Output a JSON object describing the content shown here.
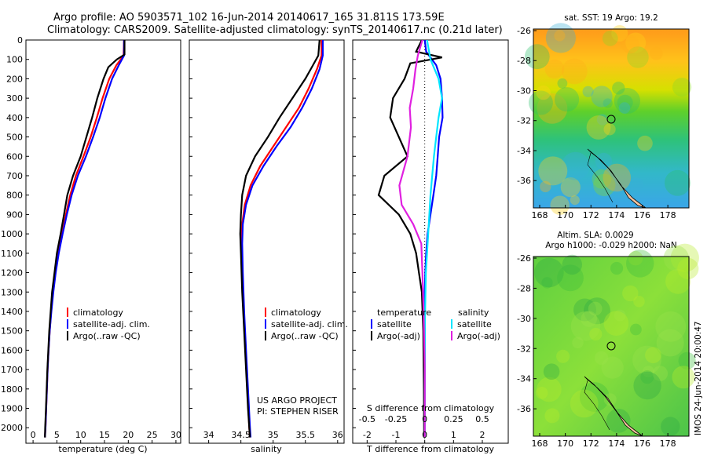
{
  "title": {
    "line1": "Argo profile: AO 5903571_102 16-Jun-2014 20140617_165 31.811S 173.59E",
    "line2": "Climatology: CARS2009. Satellite-adjusted climatology: synTS_20140617.nc (0.21d later)"
  },
  "depth_ticks": [
    0,
    100,
    200,
    300,
    400,
    500,
    600,
    700,
    800,
    900,
    1000,
    1100,
    1200,
    1300,
    1400,
    1500,
    1600,
    1700,
    1800,
    1900,
    2000
  ],
  "temperature_panel": {
    "xlabel": "temperature (deg C)",
    "xticks": [
      "0",
      "5",
      "10",
      "15",
      "20",
      "25",
      "30"
    ],
    "legend": [
      "climatology",
      "satellite-adj. clim.",
      "Argo(..raw -QC)"
    ]
  },
  "salinity_panel": {
    "xlabel": "salinity",
    "xticks": [
      "34",
      "34.5",
      "35",
      "35.5",
      "36"
    ],
    "legend": [
      "climatology",
      "satellite-adj. clim.",
      "Argo(..raw -QC)"
    ],
    "credit1": "US ARGO PROJECT",
    "credit2": "PI: STEPHEN RISER"
  },
  "difference_panel": {
    "top_label": "S difference from climatology",
    "xlabel": "T difference from climatology",
    "top_ticks": [
      "-0.5",
      "-0.25",
      "0",
      "0.25",
      "0.5"
    ],
    "bottom_ticks": [
      "-2",
      "-1",
      "0",
      "1",
      "2"
    ],
    "legend_temp_title": "temperature",
    "legend_temp": [
      "satellite",
      "Argo(-adj)"
    ],
    "legend_sal_title": "salinity",
    "legend_sal": [
      "satellite",
      "Argo(-adj)"
    ]
  },
  "sst_map": {
    "title": "sat. SST: 19 Argo: 19.2",
    "yticks": [
      "-26",
      "-28",
      "-30",
      "-32",
      "-34",
      "-36"
    ],
    "xticks": [
      "168",
      "170",
      "172",
      "174",
      "176",
      "178"
    ]
  },
  "sla_map": {
    "title1": "Altim. SLA: 0.0029",
    "title2": "Argo h1000: -0.029 h2000: NaN",
    "yticks": [
      "-26",
      "-28",
      "-30",
      "-32",
      "-34",
      "-36"
    ],
    "xticks": [
      "168",
      "170",
      "172",
      "174",
      "176",
      "178"
    ]
  },
  "side_stamp": "IMOS 24-Jun-2014 20:00:47",
  "colors": {
    "climatology": "#ff0000",
    "satellite": "#0000ff",
    "argo": "#000000",
    "sal_satellite": "#00e5ff",
    "sal_argo": "#e020e0"
  },
  "chart_data": [
    {
      "type": "line",
      "ylabel": "",
      "ylim": [
        2080,
        0
      ],
      "xlim": [
        -1.5,
        31
      ],
      "xlabel": "temperature (deg C)",
      "series": [
        {
          "name": "climatology",
          "points": [
            [
              19.1,
              0
            ],
            [
              19.0,
              80
            ],
            [
              17.5,
              130
            ],
            [
              16,
              200
            ],
            [
              14.6,
              300
            ],
            [
              13.4,
              400
            ],
            [
              12.1,
              500
            ],
            [
              10.6,
              600
            ],
            [
              9.0,
              700
            ],
            [
              7.8,
              800
            ],
            [
              6.9,
              900
            ],
            [
              6.1,
              1000
            ],
            [
              5.3,
              1100
            ],
            [
              4.7,
              1200
            ],
            [
              4.2,
              1300
            ],
            [
              3.8,
              1400
            ],
            [
              3.5,
              1500
            ],
            [
              3.25,
              1600
            ],
            [
              3.05,
              1700
            ],
            [
              2.9,
              1800
            ],
            [
              2.75,
              1900
            ],
            [
              2.6,
              2000
            ],
            [
              2.5,
              2050
            ]
          ]
        },
        {
          "name": "satellite-adj. clim.",
          "points": [
            [
              19.1,
              0
            ],
            [
              19.1,
              80
            ],
            [
              18.0,
              130
            ],
            [
              16.6,
              200
            ],
            [
              15.2,
              300
            ],
            [
              14.0,
              400
            ],
            [
              12.6,
              500
            ],
            [
              11.1,
              600
            ],
            [
              9.4,
              700
            ],
            [
              8.1,
              800
            ],
            [
              7.1,
              900
            ],
            [
              6.2,
              1000
            ],
            [
              5.4,
              1100
            ],
            [
              4.75,
              1200
            ],
            [
              4.25,
              1300
            ],
            [
              3.85,
              1400
            ],
            [
              3.5,
              1500
            ],
            [
              3.25,
              1600
            ],
            [
              3.05,
              1700
            ],
            [
              2.9,
              1800
            ],
            [
              2.75,
              1900
            ],
            [
              2.6,
              2000
            ],
            [
              2.5,
              2050
            ]
          ]
        },
        {
          "name": "Argo(..raw -QC)",
          "points": [
            [
              19.2,
              0
            ],
            [
              19.2,
              75
            ],
            [
              17.6,
              100
            ],
            [
              15.8,
              140
            ],
            [
              14.8,
              200
            ],
            [
              13.5,
              300
            ],
            [
              12.4,
              400
            ],
            [
              11.2,
              500
            ],
            [
              10.0,
              600
            ],
            [
              8.4,
              700
            ],
            [
              7.2,
              800
            ],
            [
              6.5,
              900
            ],
            [
              5.8,
              1000
            ],
            [
              5.0,
              1100
            ],
            [
              4.5,
              1200
            ],
            [
              4.0,
              1300
            ],
            [
              3.7,
              1400
            ],
            [
              3.4,
              1500
            ],
            [
              3.2,
              1600
            ],
            [
              3.0,
              1700
            ],
            [
              2.85,
              1800
            ],
            [
              2.7,
              1900
            ],
            [
              2.55,
              2000
            ],
            [
              2.5,
              2050
            ]
          ]
        }
      ]
    },
    {
      "type": "line",
      "ylim": [
        2080,
        0
      ],
      "xlim": [
        33.7,
        36.1
      ],
      "xlabel": "salinity",
      "series": [
        {
          "name": "climatology",
          "points": [
            [
              35.75,
              0
            ],
            [
              35.75,
              80
            ],
            [
              35.68,
              150
            ],
            [
              35.55,
              250
            ],
            [
              35.4,
              350
            ],
            [
              35.2,
              450
            ],
            [
              35.0,
              550
            ],
            [
              34.8,
              650
            ],
            [
              34.65,
              750
            ],
            [
              34.56,
              850
            ],
            [
              34.52,
              950
            ],
            [
              34.51,
              1050
            ],
            [
              34.52,
              1200
            ],
            [
              34.54,
              1400
            ],
            [
              34.57,
              1600
            ],
            [
              34.6,
              1800
            ],
            [
              34.63,
              2000
            ],
            [
              34.64,
              2050
            ]
          ]
        },
        {
          "name": "satellite-adj. clim.",
          "points": [
            [
              35.77,
              0
            ],
            [
              35.77,
              80
            ],
            [
              35.72,
              150
            ],
            [
              35.6,
              250
            ],
            [
              35.45,
              350
            ],
            [
              35.27,
              450
            ],
            [
              35.05,
              550
            ],
            [
              34.85,
              650
            ],
            [
              34.68,
              750
            ],
            [
              34.58,
              850
            ],
            [
              34.53,
              950
            ],
            [
              34.52,
              1050
            ],
            [
              34.53,
              1200
            ],
            [
              34.55,
              1400
            ],
            [
              34.58,
              1600
            ],
            [
              34.61,
              1800
            ],
            [
              34.64,
              2000
            ],
            [
              34.65,
              2050
            ]
          ]
        },
        {
          "name": "Argo(..raw -QC)",
          "points": [
            [
              35.72,
              0
            ],
            [
              35.7,
              80
            ],
            [
              35.6,
              140
            ],
            [
              35.5,
              200
            ],
            [
              35.3,
              300
            ],
            [
              35.1,
              400
            ],
            [
              34.92,
              500
            ],
            [
              34.72,
              600
            ],
            [
              34.58,
              700
            ],
            [
              34.52,
              800
            ],
            [
              34.5,
              900
            ],
            [
              34.49,
              1000
            ],
            [
              34.5,
              1100
            ],
            [
              34.52,
              1300
            ],
            [
              34.55,
              1500
            ],
            [
              34.58,
              1700
            ],
            [
              34.61,
              1900
            ],
            [
              34.63,
              2000
            ],
            [
              34.64,
              2050
            ]
          ]
        }
      ]
    },
    {
      "type": "line",
      "ylim": [
        2080,
        0
      ],
      "xlim": [
        -2.5,
        2.9
      ],
      "xlabel": "T difference from climatology",
      "top_label": "S difference from climatology",
      "series": [
        {
          "name": "satellite",
          "quantity": "temperature",
          "points": [
            [
              0,
              0
            ],
            [
              0.05,
              60
            ],
            [
              0.4,
              130
            ],
            [
              0.55,
              200
            ],
            [
              0.6,
              300
            ],
            [
              0.62,
              400
            ],
            [
              0.5,
              500
            ],
            [
              0.45,
              600
            ],
            [
              0.4,
              700
            ],
            [
              0.3,
              800
            ],
            [
              0.2,
              900
            ],
            [
              0.1,
              1000
            ],
            [
              0.05,
              1100
            ],
            [
              0.02,
              1200
            ],
            [
              0,
              1300
            ],
            [
              0,
              1500
            ],
            [
              0,
              1800
            ],
            [
              0,
              2050
            ]
          ]
        },
        {
          "name": "Argo(-adj)",
          "quantity": "temperature",
          "points": [
            [
              -0.1,
              0
            ],
            [
              -0.3,
              60
            ],
            [
              0.6,
              90
            ],
            [
              -0.5,
              120
            ],
            [
              -0.7,
              200
            ],
            [
              -1.1,
              300
            ],
            [
              -1.2,
              400
            ],
            [
              -0.9,
              500
            ],
            [
              -0.6,
              600
            ],
            [
              -1.4,
              700
            ],
            [
              -1.6,
              800
            ],
            [
              -0.9,
              900
            ],
            [
              -0.5,
              1000
            ],
            [
              -0.3,
              1100
            ],
            [
              -0.2,
              1200
            ],
            [
              -0.1,
              1300
            ],
            [
              -0.05,
              1500
            ],
            [
              -0.03,
              1800
            ],
            [
              -0.02,
              2050
            ]
          ]
        },
        {
          "name": "satellite",
          "quantity": "salinity",
          "points": [
            [
              0.02,
              0
            ],
            [
              0.05,
              100
            ],
            [
              0.12,
              200
            ],
            [
              0.15,
              300
            ],
            [
              0.12,
              400
            ],
            [
              0.1,
              500
            ],
            [
              0.08,
              600
            ],
            [
              0.05,
              800
            ],
            [
              0.03,
              1000
            ],
            [
              0.01,
              1200
            ],
            [
              0,
              1500
            ],
            [
              0,
              1800
            ],
            [
              0,
              2050
            ]
          ]
        },
        {
          "name": "Argo(-adj)",
          "quantity": "salinity",
          "points": [
            [
              -0.02,
              0
            ],
            [
              -0.06,
              80
            ],
            [
              -0.08,
              150
            ],
            [
              -0.1,
              250
            ],
            [
              -0.13,
              350
            ],
            [
              -0.12,
              450
            ],
            [
              -0.15,
              600
            ],
            [
              -0.22,
              750
            ],
            [
              -0.2,
              850
            ],
            [
              -0.1,
              950
            ],
            [
              -0.03,
              1050
            ],
            [
              -0.02,
              1200
            ],
            [
              -0.01,
              1400
            ],
            [
              0,
              1700
            ],
            [
              0,
              2050
            ]
          ]
        }
      ]
    }
  ]
}
